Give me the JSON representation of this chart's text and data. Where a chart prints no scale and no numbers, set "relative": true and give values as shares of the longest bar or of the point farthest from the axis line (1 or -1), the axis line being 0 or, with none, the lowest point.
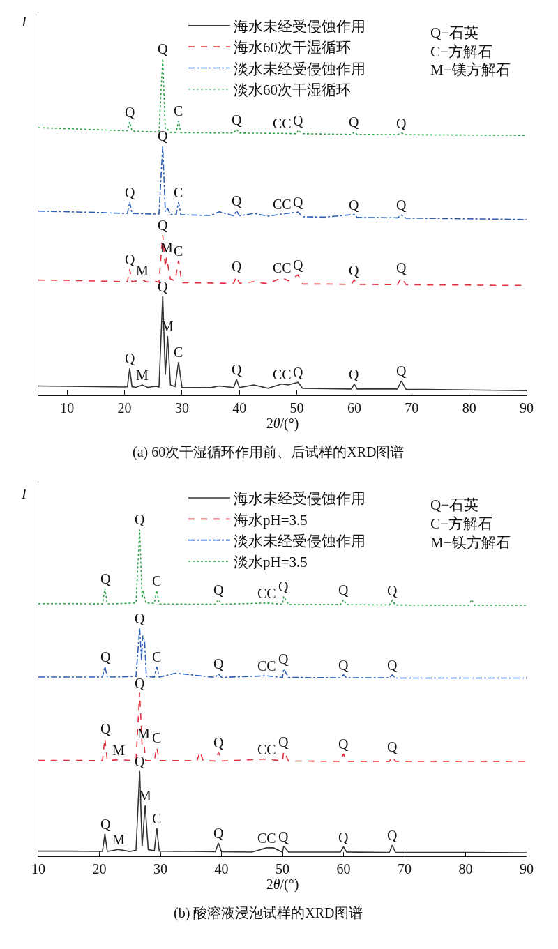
{
  "chart_data": [
    {
      "type": "line",
      "title": "(a) 60次干湿循环作用前、后试样的XRD图谱",
      "xlabel": "2θ/(°)",
      "ylabel": "I",
      "relative": true,
      "xlim": [
        5,
        90
      ],
      "xticks": [
        10,
        20,
        30,
        40,
        50,
        60,
        70,
        80,
        90
      ],
      "legend": "top",
      "marker": "none",
      "series": [
        {
          "name": "海水未经受侵蚀作用",
          "color": "#333333",
          "line_style": "solid",
          "x": [
            5,
            10,
            15,
            20,
            20.5,
            20.9,
            21.3,
            22,
            23.1,
            24,
            25.5,
            26,
            26.65,
            27.1,
            27.5,
            28,
            28.8,
            29.4,
            30,
            35,
            36.5,
            39,
            39.5,
            40,
            42.5,
            45,
            47.4,
            48.5,
            50.2,
            51,
            55,
            59.5,
            60,
            60.5,
            67.5,
            68.2,
            69,
            75,
            80,
            85,
            90
          ],
          "values": [
            0.027,
            0.026,
            0.025,
            0.024,
            0.025,
            0.079,
            0.025,
            0.023,
            0.03,
            0.023,
            0.026,
            0.024,
            0.294,
            0.06,
            0.175,
            0.03,
            0.025,
            0.098,
            0.023,
            0.022,
            0.027,
            0.022,
            0.046,
            0.022,
            0.03,
            0.02,
            0.033,
            0.03,
            0.038,
            0.02,
            0.019,
            0.018,
            0.033,
            0.018,
            0.018,
            0.042,
            0.017,
            0.016,
            0.015,
            0.014,
            0.013
          ]
        },
        {
          "name": "海水60次干湿循环",
          "color": "#e0303f",
          "line_style": "dashed",
          "x": [
            5,
            10,
            15,
            20,
            20.5,
            20.9,
            21.3,
            23.1,
            24,
            25.5,
            26,
            26.65,
            27.1,
            27.3,
            28,
            28.8,
            29.4,
            30,
            35,
            39,
            39.5,
            40,
            42.5,
            45,
            47.4,
            48.5,
            50.2,
            51,
            55,
            59.5,
            60,
            60.5,
            67.5,
            68.2,
            69,
            75,
            80,
            85,
            90
          ],
          "values": [
            0.342,
            0.341,
            0.339,
            0.337,
            0.337,
            0.374,
            0.337,
            0.342,
            0.336,
            0.338,
            0.335,
            0.476,
            0.38,
            0.409,
            0.345,
            0.34,
            0.399,
            0.334,
            0.333,
            0.332,
            0.353,
            0.332,
            0.337,
            0.331,
            0.349,
            0.34,
            0.357,
            0.33,
            0.33,
            0.329,
            0.342,
            0.329,
            0.328,
            0.349,
            0.328,
            0.327,
            0.327,
            0.326,
            0.326
          ]
        },
        {
          "name": "淡水未经受侵蚀作用",
          "color": "#2d5fb5",
          "line_style": "dashdot",
          "x": [
            5,
            10,
            15,
            20,
            20.5,
            20.9,
            21.3,
            25.5,
            26,
            26.65,
            27.1,
            27.5,
            28,
            29,
            29.4,
            29.8,
            35,
            36.5,
            39,
            39.5,
            40,
            42.5,
            45,
            47.4,
            50.2,
            51,
            55,
            60,
            60.5,
            67.5,
            68.2,
            69,
            75,
            80,
            85,
            90
          ],
          "values": [
            0.547,
            0.545,
            0.543,
            0.54,
            0.54,
            0.574,
            0.54,
            0.538,
            0.538,
            0.741,
            0.545,
            0.555,
            0.537,
            0.537,
            0.574,
            0.536,
            0.534,
            0.545,
            0.533,
            0.548,
            0.533,
            0.54,
            0.532,
            0.538,
            0.544,
            0.53,
            0.529,
            0.537,
            0.528,
            0.527,
            0.535,
            0.526,
            0.525,
            0.524,
            0.523,
            0.522
          ]
        },
        {
          "name": "淡水60次干湿循环",
          "color": "#2ea04a",
          "line_style": "dotted",
          "x": [
            5,
            10,
            15,
            20,
            20.5,
            20.9,
            21.3,
            26,
            26.65,
            27.1,
            27.5,
            28,
            29,
            29.4,
            29.8,
            39,
            39.5,
            40,
            47.4,
            50,
            50.2,
            51,
            59.5,
            60,
            60.5,
            67.5,
            68.2,
            69,
            80,
            90
          ],
          "values": [
            0.795,
            0.792,
            0.789,
            0.786,
            0.786,
            0.812,
            0.785,
            0.782,
            1.0,
            0.79,
            0.79,
            0.781,
            0.781,
            0.815,
            0.78,
            0.779,
            0.79,
            0.779,
            0.778,
            0.777,
            0.787,
            0.777,
            0.775,
            0.782,
            0.775,
            0.774,
            0.779,
            0.774,
            0.773,
            0.772
          ]
        }
      ],
      "annotations": [
        "Q−石英",
        "C−方解石",
        "M−镁方解石",
        {
          "text": "Q",
          "x": 21,
          "y": 0.812
        },
        {
          "text": "Q",
          "x": 26.65,
          "y": 1.0
        },
        {
          "text": "C",
          "x": 29.4,
          "y": 0.815
        },
        {
          "text": "Q",
          "x": 39.5,
          "y": 0.79
        },
        {
          "text": "CC",
          "x": 47.4,
          "y": 0.778
        },
        {
          "text": "Q",
          "x": 50.2,
          "y": 0.787
        },
        {
          "text": "Q",
          "x": 60,
          "y": 0.782
        },
        {
          "text": "Q",
          "x": 68.2,
          "y": 0.779
        },
        {
          "text": "Q",
          "x": 21,
          "y": 0.574
        },
        {
          "text": "Q",
          "x": 26.65,
          "y": 0.741
        },
        {
          "text": "C",
          "x": 29.4,
          "y": 0.574
        },
        {
          "text": "Q",
          "x": 39.5,
          "y": 0.548
        },
        {
          "text": "CC",
          "x": 47.4,
          "y": 0.538
        },
        {
          "text": "Q",
          "x": 50.2,
          "y": 0.544
        },
        {
          "text": "Q",
          "x": 60,
          "y": 0.537
        },
        {
          "text": "Q",
          "x": 68.2,
          "y": 0.535
        },
        {
          "text": "Q",
          "x": 21,
          "y": 0.374
        },
        {
          "text": "M",
          "x": 23.1,
          "y": 0.342
        },
        {
          "text": "Q",
          "x": 26.65,
          "y": 0.476
        },
        {
          "text": "M",
          "x": 27.3,
          "y": 0.409
        },
        {
          "text": "C",
          "x": 29.4,
          "y": 0.399
        },
        {
          "text": "Q",
          "x": 39.5,
          "y": 0.353
        },
        {
          "text": "CC",
          "x": 47.4,
          "y": 0.349
        },
        {
          "text": "Q",
          "x": 50.2,
          "y": 0.357
        },
        {
          "text": "Q",
          "x": 60,
          "y": 0.342
        },
        {
          "text": "Q",
          "x": 68.2,
          "y": 0.349
        },
        {
          "text": "Q",
          "x": 21,
          "y": 0.079
        },
        {
          "text": "M",
          "x": 23.1,
          "y": 0.03
        },
        {
          "text": "Q",
          "x": 26.65,
          "y": 0.294
        },
        {
          "text": "M",
          "x": 27.5,
          "y": 0.175
        },
        {
          "text": "C",
          "x": 29.4,
          "y": 0.098
        },
        {
          "text": "Q",
          "x": 39.5,
          "y": 0.046
        },
        {
          "text": "CC",
          "x": 47.4,
          "y": 0.033
        },
        {
          "text": "Q",
          "x": 50.2,
          "y": 0.038
        },
        {
          "text": "Q",
          "x": 60,
          "y": 0.033
        },
        {
          "text": "Q",
          "x": 68.2,
          "y": 0.042
        }
      ]
    },
    {
      "type": "line",
      "title": "(b) 酸溶液浸泡试样的XRD图谱",
      "xlabel": "2θ/(°)",
      "ylabel": "I",
      "relative": true,
      "xlim": [
        10,
        90
      ],
      "xticks": [
        10,
        20,
        30,
        40,
        50,
        60,
        70,
        80,
        90
      ],
      "legend": "top",
      "marker": "none",
      "series": [
        {
          "name": "海水未经受侵蚀作用",
          "color": "#333333",
          "line_style": "solid",
          "x": [
            10,
            15,
            20,
            20.5,
            20.9,
            21.3,
            23.1,
            25,
            26,
            26.6,
            27,
            27.5,
            28,
            29,
            29.4,
            29.8,
            35,
            39,
            39.5,
            40,
            45,
            47.4,
            48.5,
            50,
            50.2,
            51,
            59.5,
            60,
            60.5,
            67.5,
            68,
            68.5,
            80,
            90
          ],
          "values": [
            0.015,
            0.015,
            0.014,
            0.014,
            0.068,
            0.014,
            0.02,
            0.014,
            0.018,
            0.26,
            0.03,
            0.155,
            0.02,
            0.016,
            0.085,
            0.015,
            0.014,
            0.013,
            0.04,
            0.013,
            0.012,
            0.025,
            0.025,
            0.012,
            0.03,
            0.012,
            0.012,
            0.028,
            0.012,
            0.011,
            0.033,
            0.011,
            0.011,
            0.01
          ]
        },
        {
          "name": "海水pH=3.5",
          "color": "#e0303f",
          "line_style": "dashed",
          "x": [
            10,
            15,
            20,
            20.5,
            20.9,
            21.3,
            23.1,
            26,
            26.6,
            27,
            27.3,
            27.6,
            29,
            29.4,
            29.8,
            36,
            36.5,
            37,
            39,
            39.5,
            40,
            47.4,
            50,
            50.2,
            51,
            59.5,
            60,
            60.5,
            67.5,
            68,
            68.5,
            80,
            90
          ],
          "values": [
            0.293,
            0.293,
            0.292,
            0.292,
            0.36,
            0.292,
            0.295,
            0.292,
            0.5,
            0.34,
            0.345,
            0.292,
            0.292,
            0.333,
            0.292,
            0.292,
            0.32,
            0.292,
            0.291,
            0.318,
            0.291,
            0.297,
            0.291,
            0.32,
            0.291,
            0.29,
            0.313,
            0.29,
            0.29,
            0.305,
            0.29,
            0.29,
            0.29
          ]
        },
        {
          "name": "淡水未经受侵蚀作用",
          "color": "#2d5fb5",
          "line_style": "dashdot",
          "x": [
            10,
            15,
            20,
            20.5,
            20.9,
            21.3,
            26,
            26.6,
            26.9,
            27.1,
            27.4,
            27.7,
            29,
            29.4,
            29.8,
            32.5,
            39,
            39.5,
            40,
            47.4,
            50,
            50.2,
            51,
            59.5,
            60,
            60.5,
            67.5,
            68,
            68.5,
            80,
            90
          ],
          "values": [
            0.548,
            0.548,
            0.548,
            0.548,
            0.58,
            0.548,
            0.55,
            0.698,
            0.6,
            0.675,
            0.66,
            0.55,
            0.548,
            0.58,
            0.548,
            0.56,
            0.547,
            0.558,
            0.547,
            0.552,
            0.547,
            0.573,
            0.547,
            0.546,
            0.555,
            0.546,
            0.546,
            0.555,
            0.545,
            0.545,
            0.545
          ]
        },
        {
          "name": "淡水pH=3.5",
          "color": "#2ea04a",
          "line_style": "dotted",
          "x": [
            10,
            15,
            20,
            20.5,
            20.9,
            21.3,
            26,
            26.6,
            27,
            27.2,
            27.6,
            29,
            29.4,
            29.8,
            39,
            39.5,
            40,
            47.4,
            50,
            50.2,
            51,
            59.5,
            60,
            60.5,
            67.5,
            68,
            68.5,
            80.5,
            81,
            81.5,
            90
          ],
          "values": [
            0.773,
            0.773,
            0.772,
            0.772,
            0.82,
            0.772,
            0.775,
            1.0,
            0.79,
            0.813,
            0.775,
            0.774,
            0.813,
            0.772,
            0.771,
            0.785,
            0.771,
            0.775,
            0.771,
            0.795,
            0.77,
            0.77,
            0.785,
            0.77,
            0.769,
            0.783,
            0.769,
            0.768,
            0.785,
            0.768,
            0.768
          ]
        }
      ],
      "annotations": [
        "Q−石英",
        "C−方解石",
        "M−镁方解石",
        {
          "text": "Q",
          "x": 21,
          "y": 0.82
        },
        {
          "text": "Q",
          "x": 26.6,
          "y": 1.0
        },
        {
          "text": "C",
          "x": 29.4,
          "y": 0.813
        },
        {
          "text": "Q",
          "x": 39.5,
          "y": 0.785
        },
        {
          "text": "CC",
          "x": 47.4,
          "y": 0.775
        },
        {
          "text": "Q",
          "x": 50.2,
          "y": 0.795
        },
        {
          "text": "Q",
          "x": 60,
          "y": 0.785
        },
        {
          "text": "Q",
          "x": 68,
          "y": 0.783
        },
        {
          "text": "Q",
          "x": 21,
          "y": 0.58
        },
        {
          "text": "Q",
          "x": 26.6,
          "y": 0.698
        },
        {
          "text": "C",
          "x": 29.4,
          "y": 0.58
        },
        {
          "text": "Q",
          "x": 39.5,
          "y": 0.558
        },
        {
          "text": "CC",
          "x": 47.4,
          "y": 0.552
        },
        {
          "text": "Q",
          "x": 50.2,
          "y": 0.573
        },
        {
          "text": "Q",
          "x": 60,
          "y": 0.555
        },
        {
          "text": "Q",
          "x": 68,
          "y": 0.555
        },
        {
          "text": "Q",
          "x": 21,
          "y": 0.36
        },
        {
          "text": "M",
          "x": 23.1,
          "y": 0.295
        },
        {
          "text": "Q",
          "x": 26.6,
          "y": 0.5
        },
        {
          "text": "M",
          "x": 27.3,
          "y": 0.345
        },
        {
          "text": "C",
          "x": 29.4,
          "y": 0.333
        },
        {
          "text": "Q",
          "x": 39.5,
          "y": 0.318
        },
        {
          "text": "CC",
          "x": 47.4,
          "y": 0.297
        },
        {
          "text": "Q",
          "x": 50.2,
          "y": 0.32
        },
        {
          "text": "Q",
          "x": 60,
          "y": 0.313
        },
        {
          "text": "Q",
          "x": 68,
          "y": 0.305
        },
        {
          "text": "Q",
          "x": 21,
          "y": 0.068
        },
        {
          "text": "M",
          "x": 23.1,
          "y": 0.02
        },
        {
          "text": "Q",
          "x": 26.6,
          "y": 0.26
        },
        {
          "text": "M",
          "x": 27.5,
          "y": 0.155
        },
        {
          "text": "C",
          "x": 29.4,
          "y": 0.085
        },
        {
          "text": "Q",
          "x": 39.5,
          "y": 0.04
        },
        {
          "text": "CC",
          "x": 47.4,
          "y": 0.025
        },
        {
          "text": "Q",
          "x": 50.2,
          "y": 0.03
        },
        {
          "text": "Q",
          "x": 60,
          "y": 0.028
        },
        {
          "text": "Q",
          "x": 68,
          "y": 0.033
        }
      ]
    }
  ]
}
